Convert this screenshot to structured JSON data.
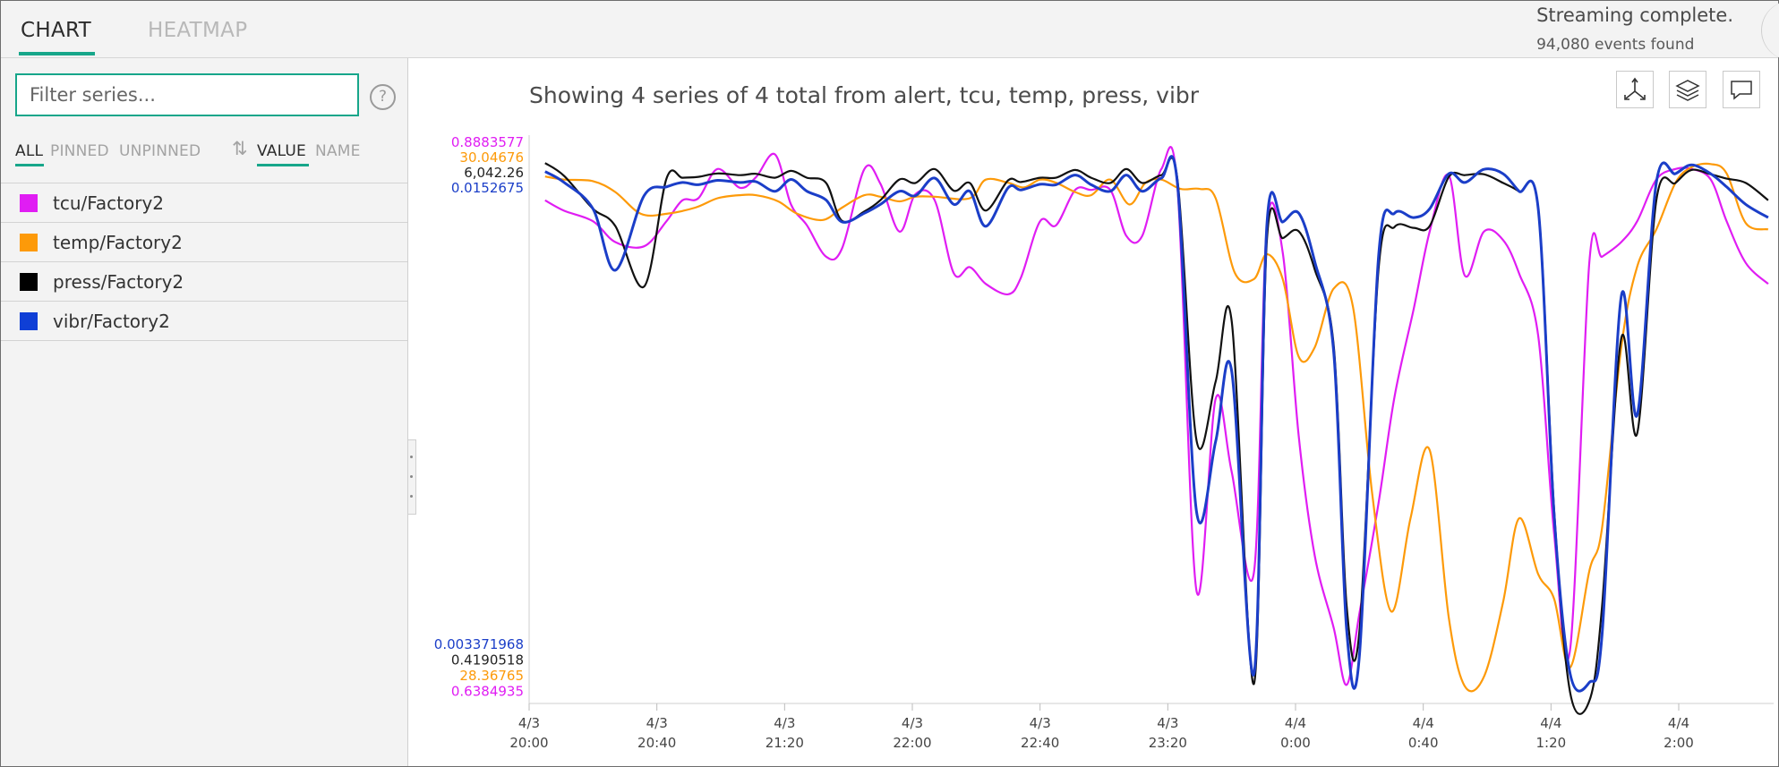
{
  "tabs": {
    "chart": "CHART",
    "heatmap": "HEATMAP"
  },
  "status": {
    "message": "Streaming complete.",
    "events": "94,080 events found"
  },
  "sidebar": {
    "filter_placeholder": "Filter series...",
    "help": "?",
    "filters": {
      "all": "ALL",
      "pinned": "PINNED",
      "unpinned": "UNPINNED"
    },
    "sort_icon": "⇅",
    "sort": {
      "value": "VALUE",
      "name": "NAME"
    },
    "series": [
      {
        "label": "tcu/Factory2",
        "color": "#e01df3"
      },
      {
        "label": "temp/Factory2",
        "color": "#fd9a09"
      },
      {
        "label": "press/Factory2",
        "color": "#111111"
      },
      {
        "label": "vibr/Factory2",
        "color": "#1b3ec8"
      }
    ]
  },
  "chart_title": "Showing 4 series of 4 total from alert, tcu, temp, press, vibr",
  "toolbar_icons": [
    "axis-icon",
    "layers-icon",
    "comment-icon"
  ],
  "chart_data": {
    "type": "line",
    "title": "Showing 4 series of 4 total from alert, tcu, temp, press, vibr",
    "x_ticks": [
      [
        "4/3",
        "20:00"
      ],
      [
        "4/3",
        "20:40"
      ],
      [
        "4/3",
        "21:20"
      ],
      [
        "4/3",
        "22:00"
      ],
      [
        "4/3",
        "22:40"
      ],
      [
        "4/3",
        "23:20"
      ],
      [
        "4/4",
        "0:00"
      ],
      [
        "4/4",
        "0:40"
      ],
      [
        "4/4",
        "1:20"
      ],
      [
        "4/4",
        "2:00"
      ]
    ],
    "x_tick_minutes": [
      0,
      40,
      80,
      120,
      160,
      200,
      240,
      280,
      320,
      360
    ],
    "x_range_minutes": [
      0,
      390
    ],
    "y_axis_max_labels": [
      {
        "text": "0.8883577",
        "color": "#e01df3"
      },
      {
        "text": "30.04676",
        "color": "#fd9a09"
      },
      {
        "text": "6,042.26",
        "color": "#222222"
      },
      {
        "text": "0.0152675",
        "color": "#1b3ec8"
      }
    ],
    "y_axis_min_labels": [
      {
        "text": "0.003371968",
        "color": "#1b3ec8"
      },
      {
        "text": "0.4190518",
        "color": "#222222"
      },
      {
        "text": "28.36765",
        "color": "#fd9a09"
      },
      {
        "text": "0.6384935",
        "color": "#e01df3"
      }
    ],
    "series": [
      {
        "name": "tcu/Factory2",
        "color": "#e01df3",
        "min": 0.6384935,
        "max": 0.8883577,
        "x": [
          5,
          11,
          20,
          27,
          36,
          43,
          48,
          53,
          59,
          66,
          71,
          77,
          82,
          87,
          93,
          98,
          105,
          110,
          116,
          121,
          127,
          133,
          138,
          143,
          150,
          154,
          160,
          165,
          171,
          176,
          182,
          187,
          192,
          198,
          203,
          209,
          215,
          220,
          227,
          231,
          236,
          241,
          246,
          252,
          256,
          260,
          266,
          271,
          277,
          282,
          288,
          293,
          299,
          305,
          310,
          316,
          321,
          326,
          332,
          336,
          342,
          347,
          353,
          359,
          364,
          370,
          375,
          381,
          388
        ],
        "values": [
          0.87,
          0.865,
          0.86,
          0.85,
          0.848,
          0.86,
          0.87,
          0.871,
          0.885,
          0.876,
          0.881,
          0.892,
          0.868,
          0.858,
          0.843,
          0.847,
          0.885,
          0.878,
          0.855,
          0.873,
          0.87,
          0.835,
          0.838,
          0.83,
          0.825,
          0.833,
          0.86,
          0.858,
          0.875,
          0.875,
          0.875,
          0.853,
          0.853,
          0.885,
          0.877,
          0.683,
          0.775,
          0.74,
          0.692,
          0.857,
          0.845,
          0.757,
          0.7,
          0.665,
          0.638,
          0.672,
          0.725,
          0.776,
          0.818,
          0.855,
          0.882,
          0.834,
          0.855,
          0.851,
          0.835,
          0.805,
          0.71,
          0.655,
          0.84,
          0.843,
          0.85,
          0.86,
          0.88,
          0.885,
          0.885,
          0.88,
          0.86,
          0.84,
          0.83
        ]
      },
      {
        "name": "temp/Factory2",
        "color": "#fd9a09",
        "min": 28.36765,
        "max": 30.04676,
        "x": [
          5,
          11,
          20,
          27,
          35,
          43,
          52,
          59,
          66,
          71,
          78,
          84,
          92,
          98,
          105,
          110,
          116,
          121,
          127,
          138,
          143,
          150,
          155,
          160,
          165,
          171,
          176,
          182,
          188,
          193,
          198,
          204,
          210,
          215,
          221,
          227,
          231,
          236,
          241,
          246,
          252,
          258,
          264,
          270,
          276,
          282,
          288,
          293,
          299,
          305,
          310,
          316,
          321,
          326,
          332,
          336,
          342,
          347,
          353,
          359,
          364,
          370,
          375,
          381,
          388
        ],
        "values": [
          30.0,
          29.99,
          29.985,
          29.95,
          29.88,
          29.88,
          29.9,
          29.93,
          29.94,
          29.94,
          29.92,
          29.88,
          29.86,
          29.9,
          29.94,
          29.935,
          29.92,
          29.935,
          29.935,
          29.93,
          29.99,
          29.98,
          29.965,
          29.99,
          29.98,
          29.95,
          29.94,
          29.99,
          29.91,
          29.98,
          29.99,
          29.96,
          29.96,
          29.93,
          29.69,
          29.67,
          29.75,
          29.67,
          29.42,
          29.45,
          29.64,
          29.58,
          28.98,
          28.6,
          28.9,
          29.12,
          28.58,
          28.36,
          28.39,
          28.63,
          28.9,
          28.72,
          28.64,
          28.42,
          28.73,
          28.87,
          29.45,
          29.71,
          29.83,
          29.98,
          30.03,
          30.04,
          30.01,
          29.85,
          29.83
        ]
      },
      {
        "name": "press/Factory2",
        "color": "#111111",
        "min": 0.4190518,
        "max": 6042.26,
        "x": [
          5,
          11,
          20,
          27,
          36,
          43,
          48,
          53,
          59,
          66,
          71,
          77,
          82,
          87,
          93,
          98,
          105,
          110,
          116,
          121,
          127,
          133,
          138,
          143,
          150,
          154,
          160,
          165,
          171,
          176,
          182,
          187,
          192,
          198,
          203,
          209,
          215,
          220,
          227,
          231,
          236,
          241,
          246,
          252,
          256,
          260,
          266,
          271,
          277,
          282,
          288,
          293,
          299,
          305,
          310,
          316,
          321,
          326,
          332,
          336,
          342,
          347,
          353,
          359,
          364,
          370,
          375,
          381,
          388
        ],
        "values": [
          6030,
          5880,
          5500,
          5300,
          4600,
          5850,
          5860,
          5870,
          5910,
          5890,
          5905,
          5860,
          5940,
          5860,
          5800,
          5360,
          5470,
          5600,
          5840,
          5800,
          5960,
          5710,
          5800,
          5480,
          5830,
          5810,
          5860,
          5860,
          5950,
          5860,
          5800,
          5960,
          5800,
          5890,
          5850,
          2820,
          3500,
          4200,
          0,
          5120,
          5160,
          5240,
          4800,
          3900,
          900,
          600,
          4800,
          5290,
          5280,
          5300,
          5870,
          5890,
          5900,
          5800,
          5700,
          5500,
          2000,
          -100,
          -200,
          900,
          4000,
          2900,
          5600,
          5800,
          5950,
          5900,
          5850,
          5800,
          5600
        ]
      },
      {
        "name": "vibr/Factory2",
        "color": "#1b3ec8",
        "min": 0.003371968,
        "max": 0.0152675,
        "x": [
          5,
          11,
          20,
          27,
          36,
          43,
          48,
          53,
          59,
          66,
          71,
          77,
          82,
          87,
          93,
          98,
          105,
          110,
          116,
          121,
          127,
          133,
          138,
          143,
          150,
          154,
          160,
          165,
          171,
          176,
          182,
          187,
          192,
          198,
          203,
          209,
          215,
          220,
          227,
          231,
          236,
          241,
          246,
          252,
          256,
          260,
          266,
          271,
          277,
          282,
          288,
          293,
          299,
          305,
          310,
          316,
          321,
          326,
          332,
          336,
          342,
          347,
          353,
          359,
          364,
          370,
          375,
          381,
          388
        ],
        "values": [
          0.01505,
          0.0148,
          0.0142,
          0.0128,
          0.0145,
          0.0147,
          0.0148,
          0.01475,
          0.01485,
          0.0148,
          0.01482,
          0.0146,
          0.01487,
          0.0146,
          0.0144,
          0.0139,
          0.0141,
          0.0143,
          0.0146,
          0.0145,
          0.0149,
          0.0143,
          0.0146,
          0.0138,
          0.01468,
          0.01463,
          0.01476,
          0.01475,
          0.01497,
          0.01475,
          0.0146,
          0.01497,
          0.0146,
          0.0149,
          0.0148,
          0.0073,
          0.0089,
          0.0105,
          0.0036,
          0.0138,
          0.0139,
          0.0141,
          0.013,
          0.0109,
          0.0046,
          0.004,
          0.0131,
          0.0141,
          0.014,
          0.0142,
          0.015,
          0.0148,
          0.0151,
          0.015,
          0.0146,
          0.0142,
          0.0072,
          0.0036,
          0.0034,
          0.0045,
          0.0122,
          0.0095,
          0.0148,
          0.015,
          0.0152,
          0.015,
          0.0147,
          0.0143,
          0.014
        ]
      }
    ]
  }
}
